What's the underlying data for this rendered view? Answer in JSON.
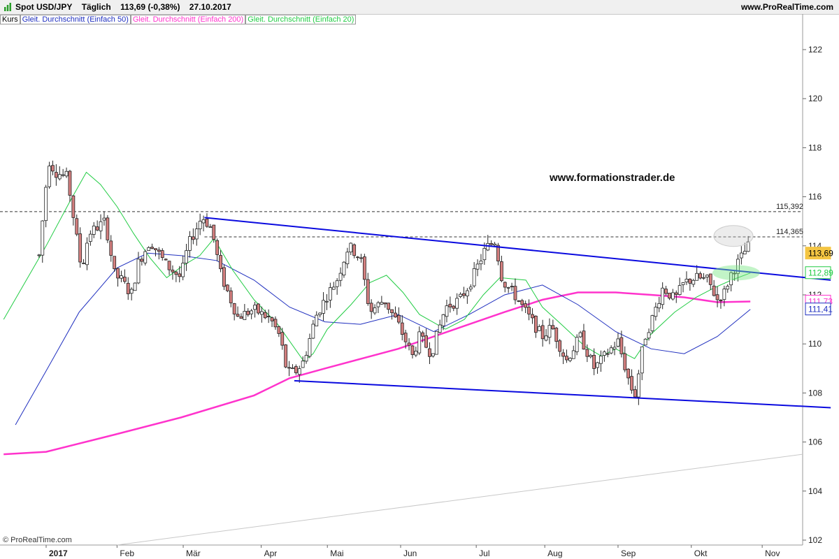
{
  "header": {
    "symbol": "Spot USD/JPY",
    "timeframe": "Täglich",
    "last": "113,69 (-0,38%)",
    "date": "27.10.2017",
    "site": "www.ProRealTime.com"
  },
  "legend": {
    "kurs": "Kurs",
    "sma50": "Gleit. Durchschnitt (Einfach 50)",
    "sma200": "Gleit. Durchschnitt (Einfach 200)",
    "sma20": "Gleit. Durchschnitt (Einfach 20)"
  },
  "watermark": "www.formationstrader.de",
  "copyright": "© ProRealTime.com",
  "colors": {
    "sma50": "#1f2fbf",
    "sma200": "#ff33cc",
    "sma20": "#22cc44",
    "trendline": "#0a0adf",
    "candle_up": "#ffffff",
    "candle_down": "#d47f7f",
    "price_tag": "#f4c542"
  },
  "chart_data": {
    "type": "candlestick",
    "instrument": "USD/JPY",
    "ylim": [
      101.8,
      122.8
    ],
    "y_ticks": [
      102,
      104,
      106,
      108,
      110,
      112,
      114,
      116,
      118,
      120,
      122
    ],
    "x_labels": [
      "2017",
      "Feb",
      "Mär",
      "Apr",
      "Mai",
      "Jun",
      "Jul",
      "Aug",
      "Sep",
      "Okt",
      "Nov"
    ],
    "horizontal_levels": [
      {
        "label": "115,392",
        "value": 115.392
      },
      {
        "label": "114,365",
        "value": 114.365
      }
    ],
    "price_tags": [
      {
        "label": "113,69",
        "value": 113.69,
        "series": "price"
      },
      {
        "label": "112,89",
        "value": 112.89,
        "series": "sma20"
      },
      {
        "label": "111,73",
        "value": 111.73,
        "series": "sma200"
      },
      {
        "label": "111,41",
        "value": 111.41,
        "series": "sma50"
      }
    ],
    "trendlines": [
      {
        "from": [
          "2017-03-10",
          115.15
        ],
        "to": [
          "2017-11-30",
          112.6
        ]
      },
      {
        "from": [
          "2017-04-17",
          108.5
        ],
        "to": [
          "2017-11-30",
          107.4
        ]
      }
    ],
    "ohlc_anchors": [
      [
        "2016-12-30",
        113.6
      ],
      [
        "2017-01-03",
        117.5
      ],
      [
        "2017-01-06",
        117.0
      ],
      [
        "2017-01-11",
        116.8
      ],
      [
        "2017-01-17",
        113.0
      ],
      [
        "2017-01-20",
        114.5
      ],
      [
        "2017-01-27",
        115.0
      ],
      [
        "2017-01-31",
        112.8
      ],
      [
        "2017-02-03",
        112.6
      ],
      [
        "2017-02-07",
        112.0
      ],
      [
        "2017-02-10",
        113.3
      ],
      [
        "2017-02-15",
        114.2
      ],
      [
        "2017-02-22",
        113.2
      ],
      [
        "2017-02-28",
        112.7
      ],
      [
        "2017-03-03",
        114.0
      ],
      [
        "2017-03-09",
        115.2
      ],
      [
        "2017-03-13",
        114.7
      ],
      [
        "2017-03-17",
        112.8
      ],
      [
        "2017-03-24",
        111.1
      ],
      [
        "2017-03-31",
        111.4
      ],
      [
        "2017-04-07",
        111.0
      ],
      [
        "2017-04-11",
        110.3
      ],
      [
        "2017-04-14",
        108.8
      ],
      [
        "2017-04-18",
        108.9
      ],
      [
        "2017-04-21",
        109.3
      ],
      [
        "2017-04-26",
        111.1
      ],
      [
        "2017-05-01",
        112.0
      ],
      [
        "2017-05-05",
        112.6
      ],
      [
        "2017-05-10",
        114.0
      ],
      [
        "2017-05-15",
        113.5
      ],
      [
        "2017-05-19",
        111.3
      ],
      [
        "2017-05-25",
        111.8
      ],
      [
        "2017-05-31",
        110.8
      ],
      [
        "2017-06-06",
        109.5
      ],
      [
        "2017-06-09",
        110.3
      ],
      [
        "2017-06-14",
        109.6
      ],
      [
        "2017-06-20",
        111.5
      ],
      [
        "2017-06-26",
        111.8
      ],
      [
        "2017-06-30",
        112.4
      ],
      [
        "2017-07-07",
        113.9
      ],
      [
        "2017-07-11",
        114.2
      ],
      [
        "2017-07-14",
        112.6
      ],
      [
        "2017-07-20",
        111.9
      ],
      [
        "2017-07-26",
        111.0
      ],
      [
        "2017-07-31",
        110.3
      ],
      [
        "2017-08-04",
        110.7
      ],
      [
        "2017-08-10",
        109.3
      ],
      [
        "2017-08-16",
        110.3
      ],
      [
        "2017-08-22",
        109.0
      ],
      [
        "2017-08-29",
        109.8
      ],
      [
        "2017-09-01",
        110.1
      ],
      [
        "2017-09-05",
        108.7
      ],
      [
        "2017-09-08",
        107.8
      ],
      [
        "2017-09-12",
        110.2
      ],
      [
        "2017-09-15",
        110.9
      ],
      [
        "2017-09-20",
        112.3
      ],
      [
        "2017-09-25",
        111.8
      ],
      [
        "2017-09-29",
        112.5
      ],
      [
        "2017-10-04",
        112.7
      ],
      [
        "2017-10-09",
        112.6
      ],
      [
        "2017-10-13",
        111.8
      ],
      [
        "2017-10-16",
        112.1
      ],
      [
        "2017-10-19",
        112.9
      ],
      [
        "2017-10-23",
        113.5
      ],
      [
        "2017-10-26",
        114.0
      ],
      [
        "2017-10-27",
        113.69
      ]
    ],
    "sma20": [
      [
        "2016-12-15",
        111.0
      ],
      [
        "2017-01-02",
        114.0
      ],
      [
        "2017-01-12",
        115.8
      ],
      [
        "2017-01-19",
        117.0
      ],
      [
        "2017-01-25",
        116.5
      ],
      [
        "2017-02-01",
        115.6
      ],
      [
        "2017-02-08",
        114.5
      ],
      [
        "2017-02-15",
        113.5
      ],
      [
        "2017-02-22",
        112.7
      ],
      [
        "2017-03-01",
        113.2
      ],
      [
        "2017-03-08",
        113.6
      ],
      [
        "2017-03-14",
        114.3
      ],
      [
        "2017-03-22",
        113.0
      ],
      [
        "2017-03-31",
        111.8
      ],
      [
        "2017-04-10",
        110.8
      ],
      [
        "2017-04-21",
        109.3
      ],
      [
        "2017-04-25",
        109.6
      ],
      [
        "2017-05-01",
        110.6
      ],
      [
        "2017-05-11",
        111.6
      ],
      [
        "2017-05-19",
        112.5
      ],
      [
        "2017-05-26",
        112.8
      ],
      [
        "2017-06-02",
        112.1
      ],
      [
        "2017-06-09",
        111.2
      ],
      [
        "2017-06-20",
        110.6
      ],
      [
        "2017-06-28",
        111.0
      ],
      [
        "2017-07-06",
        112.0
      ],
      [
        "2017-07-13",
        112.7
      ],
      [
        "2017-07-24",
        112.6
      ],
      [
        "2017-07-31",
        111.5
      ],
      [
        "2017-08-08",
        110.8
      ],
      [
        "2017-08-18",
        109.9
      ],
      [
        "2017-08-25",
        109.5
      ],
      [
        "2017-08-31",
        109.8
      ],
      [
        "2017-09-08",
        109.4
      ],
      [
        "2017-09-15",
        110.4
      ],
      [
        "2017-09-25",
        111.3
      ],
      [
        "2017-10-04",
        111.9
      ],
      [
        "2017-10-12",
        112.3
      ],
      [
        "2017-10-19",
        112.6
      ],
      [
        "2017-10-27",
        112.89
      ]
    ],
    "sma50": [
      [
        "2016-12-20",
        106.7
      ],
      [
        "2017-01-02",
        108.9
      ],
      [
        "2017-01-16",
        111.3
      ],
      [
        "2017-02-01",
        113.1
      ],
      [
        "2017-02-14",
        113.7
      ],
      [
        "2017-02-28",
        113.6
      ],
      [
        "2017-03-15",
        113.4
      ],
      [
        "2017-03-31",
        112.6
      ],
      [
        "2017-04-15",
        111.5
      ],
      [
        "2017-04-30",
        110.9
      ],
      [
        "2017-05-15",
        110.8
      ],
      [
        "2017-05-31",
        111.2
      ],
      [
        "2017-06-15",
        110.5
      ],
      [
        "2017-06-30",
        111.2
      ],
      [
        "2017-07-15",
        112.0
      ],
      [
        "2017-07-31",
        112.4
      ],
      [
        "2017-08-15",
        111.6
      ],
      [
        "2017-08-31",
        110.5
      ],
      [
        "2017-09-15",
        109.8
      ],
      [
        "2017-09-29",
        109.6
      ],
      [
        "2017-10-13",
        110.3
      ],
      [
        "2017-10-27",
        111.41
      ]
    ],
    "sma200": [
      [
        "2016-12-15",
        105.5
      ],
      [
        "2017-01-02",
        105.6
      ],
      [
        "2017-01-31",
        106.3
      ],
      [
        "2017-02-28",
        107.0
      ],
      [
        "2017-03-31",
        107.9
      ],
      [
        "2017-04-15",
        108.6
      ],
      [
        "2017-04-30",
        109.0
      ],
      [
        "2017-05-31",
        109.8
      ],
      [
        "2017-06-30",
        110.8
      ],
      [
        "2017-07-15",
        111.3
      ],
      [
        "2017-07-31",
        111.8
      ],
      [
        "2017-08-15",
        112.1
      ],
      [
        "2017-08-31",
        112.1
      ],
      [
        "2017-09-15",
        112.0
      ],
      [
        "2017-09-29",
        111.9
      ],
      [
        "2017-10-13",
        111.7
      ],
      [
        "2017-10-27",
        111.73
      ]
    ]
  }
}
